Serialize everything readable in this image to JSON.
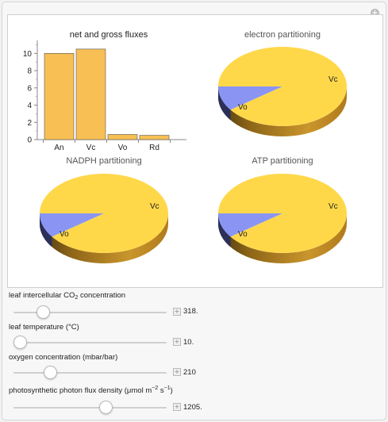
{
  "panel": {
    "bar_chart": {
      "title": "net and gross fluxes"
    },
    "pie_electron": {
      "title": "electron partitioning"
    },
    "pie_nadph": {
      "title": "NADPH partitioning"
    },
    "pie_atp": {
      "title": "ATP partitioning"
    }
  },
  "controls": {
    "co2": {
      "label_prefix": "leaf intercellular CO",
      "label_sub": "2",
      "label_suffix": " concentration",
      "value": "318.",
      "fraction": 0.19
    },
    "temp": {
      "label": "leaf temperature (°C)",
      "value": "10.",
      "fraction": 0.04
    },
    "oxygen": {
      "label": "oxygen concentration (mbar/bar)",
      "value": "210",
      "fraction": 0.24
    },
    "photon": {
      "label_prefix": "photosynthetic photon flux density (μmol m",
      "label_sup1": "−2",
      "label_mid": " s",
      "label_sup2": "−1",
      "label_suffix": ")",
      "value": "1205.",
      "fraction": 0.6
    }
  },
  "colors": {
    "bar_fill": "#f8bf54",
    "pie_vc": "#ffd84a",
    "pie_vo": "#8a95f3",
    "pie_side": "#a9761c"
  },
  "chart_data": [
    {
      "type": "bar",
      "title": "net and gross fluxes",
      "categories": [
        "An",
        "Vc",
        "Vo",
        "Rd"
      ],
      "values": [
        10.0,
        10.5,
        0.6,
        0.5
      ],
      "ylim": [
        0,
        11.5
      ],
      "yticks": [
        "0",
        "2",
        "4",
        "6",
        "8",
        "10"
      ],
      "xlabel": "",
      "ylabel": "",
      "grid": false
    },
    {
      "type": "pie",
      "title": "electron partitioning",
      "labels": [
        "Vc",
        "Vo"
      ],
      "values": [
        0.9,
        0.1
      ]
    },
    {
      "type": "pie",
      "title": "NADPH partitioning",
      "labels": [
        "Vc",
        "Vo"
      ],
      "values": [
        0.9,
        0.1
      ]
    },
    {
      "type": "pie",
      "title": "ATP partitioning",
      "labels": [
        "Vc",
        "Vo"
      ],
      "values": [
        0.9,
        0.1
      ]
    }
  ]
}
